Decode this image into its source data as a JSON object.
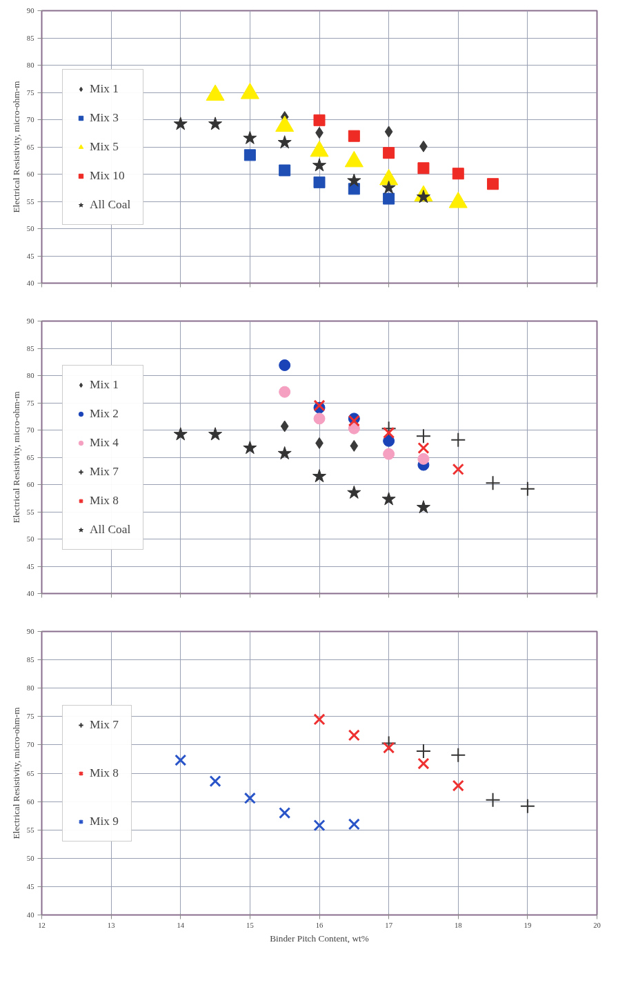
{
  "chart_data": [
    {
      "type": "scatter",
      "ylabel": "Electrical Resistivity, micro-ohm-m",
      "xlim": [
        12,
        20
      ],
      "xticks": [
        12,
        13,
        14,
        15,
        16,
        17,
        18,
        19,
        20
      ],
      "ylim": [
        40,
        90
      ],
      "yticks": [
        40,
        45,
        50,
        55,
        60,
        65,
        70,
        75,
        80,
        85,
        90
      ],
      "tick_labels": "y",
      "grid": true,
      "legend": "left",
      "series": [
        {
          "name": "Mix 1",
          "color": "#3a3a3a",
          "marker": "diamond",
          "x": [
            15.5,
            16,
            17,
            17.5
          ],
          "values": [
            70.5,
            67.6,
            67.8,
            65.1
          ]
        },
        {
          "name": "Mix 3",
          "color": "#1f4fb4",
          "marker": "square",
          "x": [
            15,
            15.5,
            16,
            16.5,
            17
          ],
          "values": [
            63.5,
            60.7,
            58.5,
            57.3,
            55.5
          ]
        },
        {
          "name": "Mix 5",
          "color": "#ffee00",
          "marker": "triangle",
          "x": [
            14.5,
            15,
            15.5,
            16,
            16.5,
            17,
            17.5,
            18
          ],
          "values": [
            74.5,
            74.8,
            68.8,
            64.2,
            62.3,
            59,
            56,
            54.8
          ]
        },
        {
          "name": "Mix 10",
          "color": "#ee2b24",
          "marker": "square",
          "x": [
            16,
            16.5,
            17,
            17.5,
            18,
            18.5
          ],
          "values": [
            69.9,
            67,
            63.9,
            61.1,
            60.1,
            58.2
          ]
        },
        {
          "name": "All Coal",
          "color": "#333333",
          "marker": "star",
          "x": [
            14,
            14.5,
            15,
            15.5,
            16,
            16.5,
            17,
            17.5
          ],
          "values": [
            69.2,
            69.2,
            66.6,
            65.8,
            61.6,
            58.8,
            57.5,
            55.8
          ]
        }
      ]
    },
    {
      "type": "scatter",
      "ylabel": "Electrical Resistivity, micro-ohm-m",
      "xlim": [
        12,
        20
      ],
      "xticks": [
        12,
        13,
        14,
        15,
        16,
        17,
        18,
        19,
        20
      ],
      "ylim": [
        40,
        90
      ],
      "yticks": [
        40,
        45,
        50,
        55,
        60,
        65,
        70,
        75,
        80,
        85,
        90
      ],
      "tick_labels": "y",
      "grid": true,
      "legend": "left",
      "series": [
        {
          "name": "Mix 1",
          "color": "#3a3a3a",
          "marker": "diamond",
          "x": [
            15.5,
            16,
            16.5
          ],
          "values": [
            70.7,
            67.6,
            67.1
          ]
        },
        {
          "name": "Mix 2",
          "color": "#1a43b8",
          "marker": "circle",
          "x": [
            15.5,
            16,
            16.5,
            17,
            17.5
          ],
          "values": [
            81.9,
            74.1,
            72.1,
            68,
            63.6
          ]
        },
        {
          "name": "Mix 4",
          "color": "#f5a0c0",
          "marker": "circle",
          "x": [
            15.5,
            16,
            16.5,
            17,
            17.5
          ],
          "values": [
            77,
            72.1,
            70.3,
            65.6,
            64.7
          ]
        },
        {
          "name": "Mix 7",
          "color": "#333333",
          "marker": "cross",
          "x": [
            17,
            17.5,
            18,
            18.5,
            19
          ],
          "values": [
            70.3,
            68.9,
            68.2,
            60.3,
            59.2
          ]
        },
        {
          "name": "Mix 8",
          "color": "#ee3030",
          "marker": "x",
          "x": [
            16,
            16.5,
            17,
            17.5,
            18
          ],
          "values": [
            74.5,
            71.7,
            69.5,
            66.7,
            62.8
          ]
        },
        {
          "name": "All Coal",
          "color": "#333333",
          "marker": "star",
          "x": [
            14,
            14.5,
            15,
            15.5,
            16,
            16.5,
            17,
            17.5
          ],
          "values": [
            69.2,
            69.2,
            66.7,
            65.7,
            61.5,
            58.5,
            57.3,
            55.8
          ]
        }
      ]
    },
    {
      "type": "scatter",
      "xlabel": "Binder Pitch Content, wt%",
      "ylabel": "Electrical Resistivity, micro-ohm-m",
      "xlim": [
        12,
        20
      ],
      "xticks": [
        12,
        13,
        14,
        15,
        16,
        17,
        18,
        19,
        20
      ],
      "ylim": [
        40,
        90
      ],
      "yticks": [
        40,
        45,
        50,
        55,
        60,
        65,
        70,
        75,
        80,
        85,
        90
      ],
      "grid": true,
      "legend": "left",
      "series": [
        {
          "name": "Mix 7",
          "color": "#333333",
          "marker": "cross",
          "x": [
            17,
            17.5,
            18,
            18.5,
            19
          ],
          "values": [
            70.3,
            68.9,
            68.2,
            60.3,
            59.2
          ]
        },
        {
          "name": "Mix 8",
          "color": "#ee3030",
          "marker": "x",
          "x": [
            16,
            16.5,
            17,
            17.5,
            18
          ],
          "values": [
            74.5,
            71.7,
            69.5,
            66.7,
            62.8
          ]
        },
        {
          "name": "Mix 9",
          "color": "#2a55c8",
          "marker": "x",
          "x": [
            14,
            14.5,
            15,
            15.5,
            16,
            16.5
          ],
          "values": [
            67.3,
            63.6,
            60.6,
            58,
            55.8,
            56
          ]
        }
      ]
    }
  ]
}
